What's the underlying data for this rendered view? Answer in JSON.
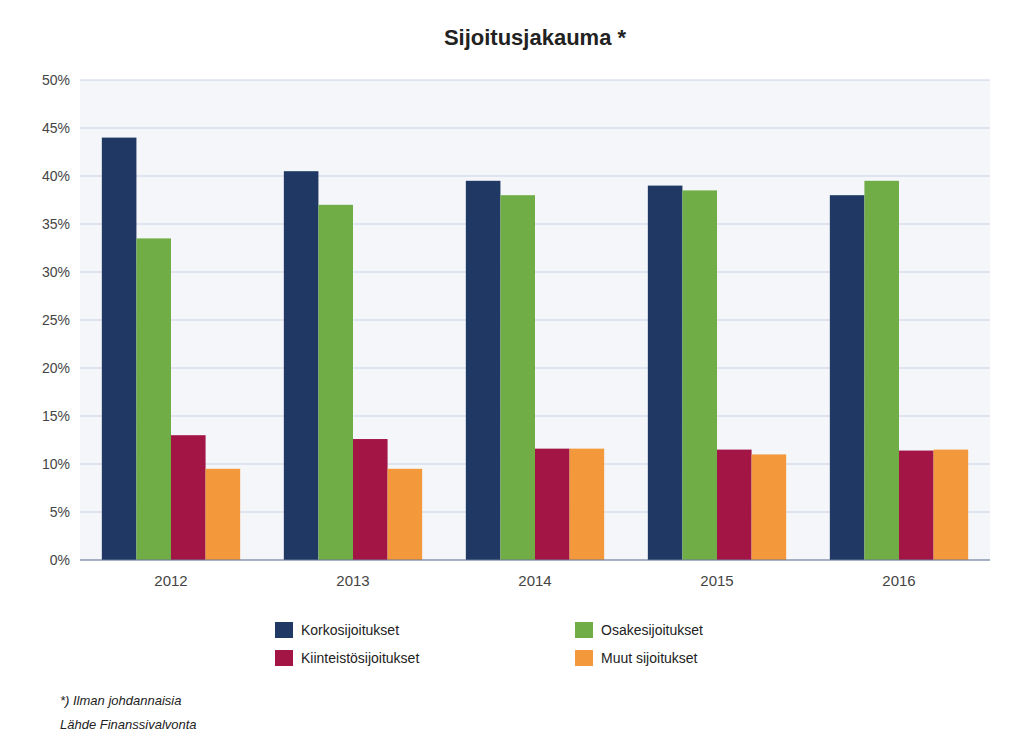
{
  "chart_data": {
    "type": "bar",
    "title": "Sijoitusjakauma *",
    "categories": [
      "2012",
      "2013",
      "2014",
      "2015",
      "2016"
    ],
    "series": [
      {
        "name": "Korkosijoitukset",
        "color": "#1F3864",
        "values": [
          0.44,
          0.405,
          0.395,
          0.39,
          0.38
        ]
      },
      {
        "name": "Osakesijoitukset",
        "color": "#70AD47",
        "values": [
          0.335,
          0.37,
          0.38,
          0.385,
          0.395
        ]
      },
      {
        "name": "Kiinteistösijoitukset",
        "color": "#A31545",
        "values": [
          0.13,
          0.126,
          0.116,
          0.115,
          0.114
        ]
      },
      {
        "name": "Muut sijoitukset",
        "color": "#F4993B",
        "values": [
          0.095,
          0.095,
          0.116,
          0.11,
          0.115
        ]
      }
    ],
    "ylim": [
      0,
      0.5
    ],
    "yticks": [
      {
        "value": 0.0,
        "label": "0%"
      },
      {
        "value": 0.05,
        "label": "5%"
      },
      {
        "value": 0.1,
        "label": "10%"
      },
      {
        "value": 0.15,
        "label": "15%"
      },
      {
        "value": 0.2,
        "label": "20%"
      },
      {
        "value": 0.25,
        "label": "25%"
      },
      {
        "value": 0.3,
        "label": "30%"
      },
      {
        "value": 0.35,
        "label": "35%"
      },
      {
        "value": 0.4,
        "label": "40%"
      },
      {
        "value": 0.45,
        "label": "45%"
      },
      {
        "value": 0.5,
        "label": "50%"
      }
    ],
    "grid": true,
    "legend": "bottom",
    "annotations": [
      "*) Ilman johdannaisia",
      "Lähde Finanssivalvonta"
    ]
  }
}
